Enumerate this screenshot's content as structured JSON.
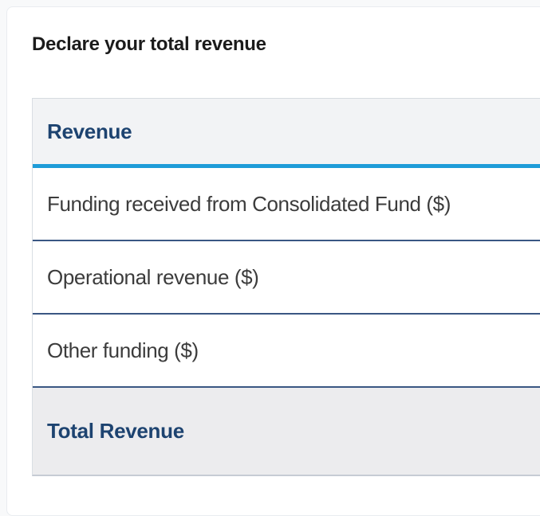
{
  "page": {
    "heading": "Declare your total revenue"
  },
  "table": {
    "header_label": "Revenue",
    "rows": [
      {
        "label": "Funding received from Consolidated Fund ($)"
      },
      {
        "label": "Operational revenue ($)"
      },
      {
        "label": "Other funding ($)"
      }
    ],
    "footer_label": "Total Revenue"
  },
  "colors": {
    "accent_blue": "#1e9cd8",
    "navy_text": "#1d4370",
    "row_separator": "#3a5783",
    "header_bg": "#f2f3f5",
    "footer_bg": "#ececee",
    "row_text": "#3c3c3c",
    "heading_text": "#1b1b1b",
    "card_border": "#e9ecf0"
  }
}
